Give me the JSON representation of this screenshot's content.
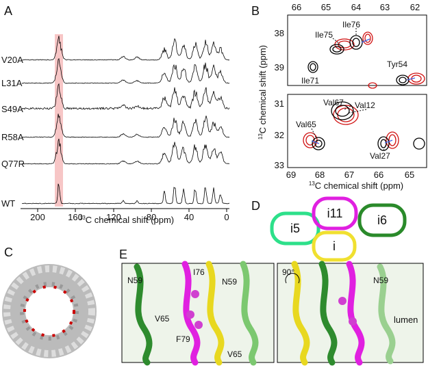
{
  "panel_a": {
    "label": "A",
    "rows": [
      "V20A",
      "L31A",
      "S49A",
      "R58A",
      "Q77R",
      "WT"
    ],
    "x_ticks": [
      "200",
      "160",
      "120",
      "80",
      "40",
      "0"
    ],
    "x_axis_isotope": "13",
    "x_axis_text": "C chemical shift (ppm)"
  },
  "panel_b": {
    "label": "B",
    "top_ticks": [
      "66",
      "65",
      "64",
      "63",
      "62"
    ],
    "top_y_ticks": [
      "38",
      "39"
    ],
    "bottom_y_ticks": [
      "31",
      "32",
      "33"
    ],
    "bottom_ticks": [
      "69",
      "68",
      "67",
      "66",
      "65"
    ],
    "x_axis_isotope": "13",
    "x_axis_text": "C chemical shift (ppm)",
    "y_axis_isotope": "13",
    "y_axis_text": "C chemical shift (ppm)",
    "peaks": [
      "Ile75",
      "Ile76",
      "Tyr54",
      "Ile71",
      "Val67",
      "Val12",
      "Val65",
      "Val27"
    ]
  },
  "panel_c": {
    "label": "C"
  },
  "panel_d": {
    "label": "D",
    "oligomers": [
      "i5",
      "i11",
      "i6",
      "i"
    ]
  },
  "panel_e": {
    "label": "E",
    "left_labels": [
      "N59",
      "I76",
      "N59",
      "V65",
      "F79",
      "V65"
    ],
    "rotation": "90°",
    "right_labels": [
      "N59",
      "lumen"
    ]
  }
}
